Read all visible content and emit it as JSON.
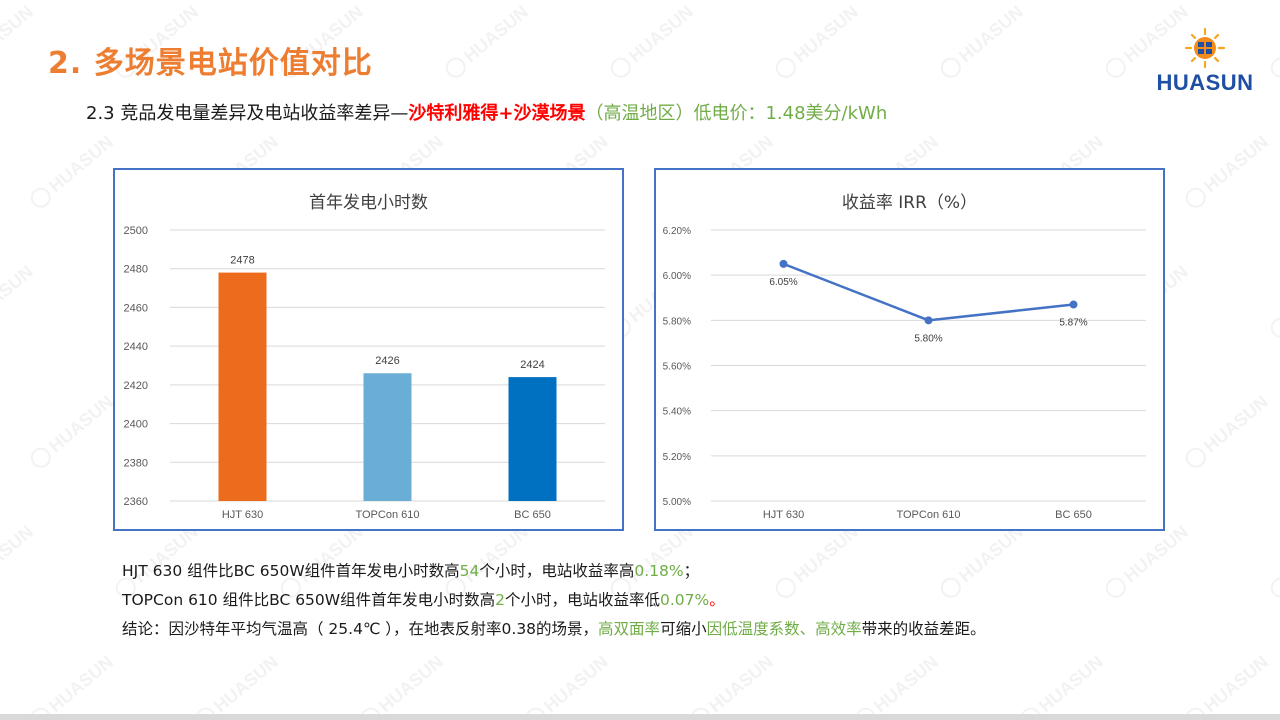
{
  "page": {
    "title": "2. 多场景电站价值对比",
    "subtitle": {
      "prefix": "2.3 竞品发电量差异及电站收益率差异—",
      "highlight": "沙特利雅得+沙漠场景",
      "suffix": "（高温地区）低电价：1.48美分/kWh"
    },
    "logo_text": "HUASUN",
    "watermark_text": "HUASUN"
  },
  "colors": {
    "title": "#ed7d31",
    "highlight": "#ff0000",
    "accent_green": "#70ad47",
    "chart_border": "#4472c4",
    "line": "#4472c4"
  },
  "notes": [
    {
      "parts": [
        {
          "text": "HJT 630 组件比BC 650W组件首年发电小时数高",
          "style": "normal"
        },
        {
          "text": "54",
          "style": "green"
        },
        {
          "text": "个小时，电站收益率高",
          "style": "normal"
        },
        {
          "text": "0.18%",
          "style": "green"
        },
        {
          "text": "；",
          "style": "normal"
        }
      ]
    },
    {
      "parts": [
        {
          "text": "TOPCon 610 组件比BC 650W组件首年发电小时数高",
          "style": "normal"
        },
        {
          "text": "2",
          "style": "green"
        },
        {
          "text": "个小时，电站收益率低",
          "style": "normal"
        },
        {
          "text": "0.07%",
          "style": "green"
        },
        {
          "text": "。",
          "style": "red"
        }
      ]
    },
    {
      "parts": [
        {
          "text": "结论：因沙特年平均气温高（ 25.4℃ ），在地表反射率0.38的场景，",
          "style": "normal"
        },
        {
          "text": "高双面率",
          "style": "green"
        },
        {
          "text": "可缩小",
          "style": "normal"
        },
        {
          "text": "因低温度系数、高效率",
          "style": "green"
        },
        {
          "text": "带来的收益差距。",
          "style": "normal"
        }
      ]
    }
  ],
  "chart_data": [
    {
      "type": "bar",
      "title": "首年发电小时数",
      "categories": [
        "HJT 630",
        "TOPCon 610",
        "BC 650"
      ],
      "values": [
        2478,
        2426,
        2424
      ],
      "data_labels": [
        "2478",
        "2426",
        "2424"
      ],
      "colors": [
        "#ed6b1c",
        "#6aaed6",
        "#0070c0"
      ],
      "ylim": [
        2360,
        2500
      ],
      "yticks": [
        2360,
        2380,
        2400,
        2420,
        2440,
        2460,
        2480,
        2500
      ],
      "ytick_labels": [
        "2360",
        "2380",
        "2400",
        "2420",
        "2440",
        "2460",
        "2480",
        "2500"
      ],
      "grid": true
    },
    {
      "type": "line",
      "title": "收益率 IRR（%）",
      "categories": [
        "HJT 630",
        "TOPCon 610",
        "BC 650"
      ],
      "values": [
        6.05,
        5.8,
        5.87
      ],
      "data_labels": [
        "6.05%",
        "5.80%",
        "5.87%"
      ],
      "color": "#4472c4",
      "ylim": [
        5.0,
        6.2
      ],
      "yticks": [
        5.0,
        5.2,
        5.4,
        5.6,
        5.8,
        6.0,
        6.2
      ],
      "ytick_labels": [
        "5.00%",
        "5.20%",
        "5.40%",
        "5.60%",
        "5.80%",
        "6.00%",
        "6.20%"
      ],
      "grid": true
    }
  ]
}
